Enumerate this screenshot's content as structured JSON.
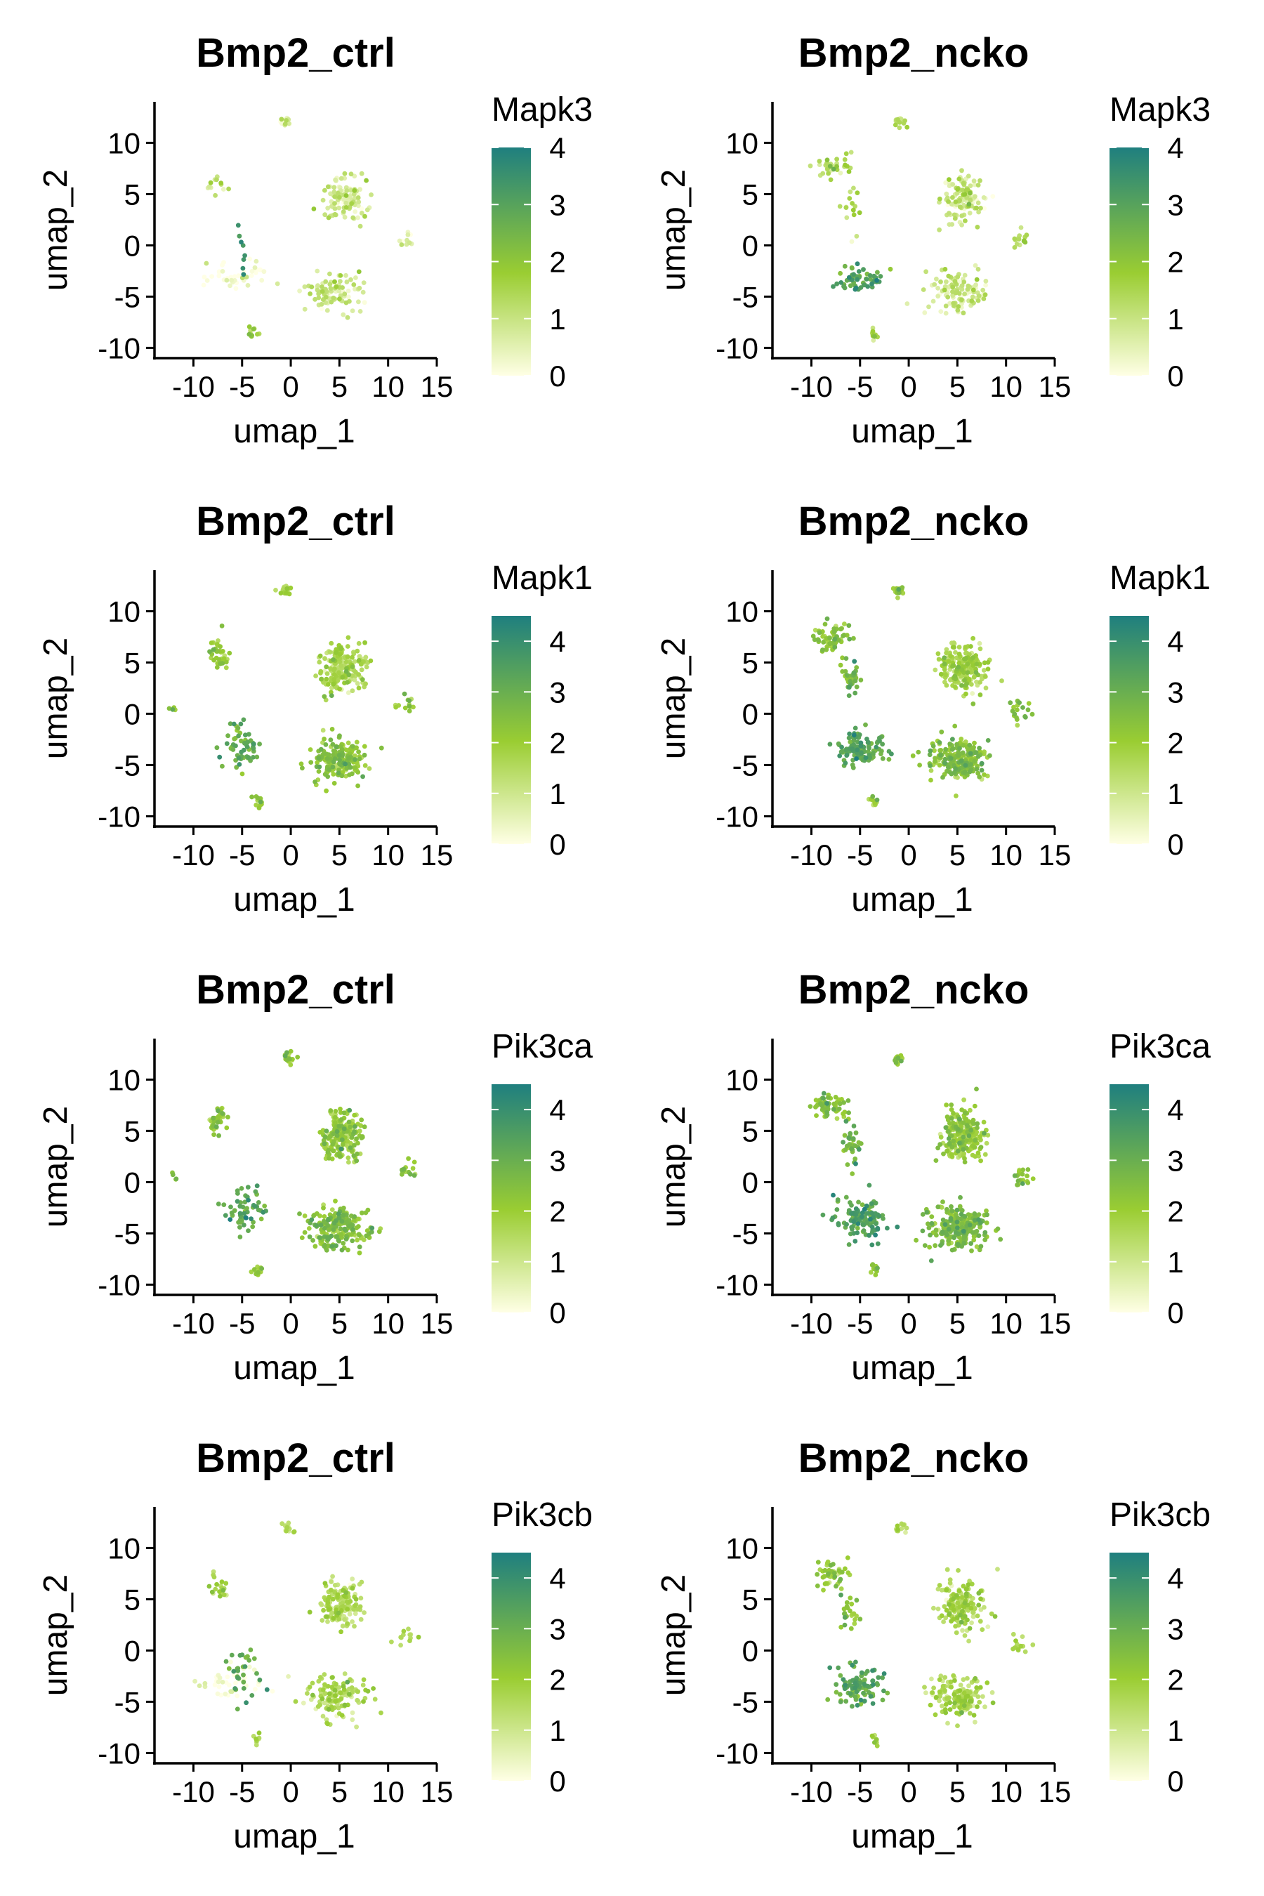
{
  "chart_data": [
    {
      "type": "scatter",
      "title": "Bmp2_ctrl",
      "xlabel": "umap_1",
      "ylabel": "umap_2",
      "gene": "Mapk3",
      "xlim": [
        -14,
        15
      ],
      "ylim": [
        -11,
        14
      ],
      "xticks": [
        -10,
        -5,
        0,
        5,
        10,
        15
      ],
      "yticks": [
        -10,
        -5,
        0,
        5,
        10
      ],
      "color_scale": {
        "min": 0,
        "max": 4,
        "ticks": [
          0,
          1,
          2,
          3,
          4
        ],
        "colors": [
          "#ffffe5",
          "#9acd32",
          "#1f7f7f"
        ]
      },
      "clusters": [
        {
          "x": -0.5,
          "y": 12,
          "sx": 0.5,
          "sy": 0.4,
          "n": 14,
          "expr": 0.9
        },
        {
          "x": 5.5,
          "y": 4.5,
          "sx": 1.9,
          "sy": 1.8,
          "n": 110,
          "expr": 0.7
        },
        {
          "x": 4.5,
          "y": -4.5,
          "sx": 2.6,
          "sy": 1.6,
          "n": 90,
          "expr": 0.9
        },
        {
          "x": -7.5,
          "y": 6,
          "sx": 0.9,
          "sy": 0.9,
          "n": 12,
          "expr": 1.2
        },
        {
          "x": -4,
          "y": -8.5,
          "sx": 0.6,
          "sy": 0.6,
          "n": 12,
          "expr": 1.6
        },
        {
          "x": -5,
          "y": -1,
          "sx": 0.6,
          "sy": 2.0,
          "n": 8,
          "expr": 3.3
        },
        {
          "x": -6,
          "y": -3,
          "sx": 3.0,
          "sy": 1.4,
          "n": 40,
          "expr": 0.05
        },
        {
          "x": 12,
          "y": 0.5,
          "sx": 0.9,
          "sy": 0.8,
          "n": 10,
          "expr": 0.7
        }
      ]
    },
    {
      "type": "scatter",
      "title": "Bmp2_ncko",
      "xlabel": "umap_1",
      "ylabel": "umap_2",
      "gene": "Mapk3",
      "xlim": [
        -14,
        15
      ],
      "ylim": [
        -11,
        14
      ],
      "xticks": [
        -10,
        -5,
        0,
        5,
        10,
        15
      ],
      "yticks": [
        -10,
        -5,
        0,
        5,
        10
      ],
      "color_scale": {
        "min": 0,
        "max": 4,
        "ticks": [
          0,
          1,
          2,
          3,
          4
        ],
        "colors": [
          "#ffffe5",
          "#9acd32",
          "#1f7f7f"
        ]
      },
      "clusters": [
        {
          "x": -1,
          "y": 12,
          "sx": 0.6,
          "sy": 0.5,
          "n": 14,
          "expr": 1.1
        },
        {
          "x": -8,
          "y": 7.5,
          "sx": 1.6,
          "sy": 1.0,
          "n": 35,
          "expr": 1.3
        },
        {
          "x": -6,
          "y": 3.5,
          "sx": 0.7,
          "sy": 1.6,
          "n": 15,
          "expr": 1.4
        },
        {
          "x": 5.5,
          "y": 4.5,
          "sx": 1.9,
          "sy": 1.8,
          "n": 120,
          "expr": 0.8
        },
        {
          "x": 5,
          "y": -4.5,
          "sx": 2.6,
          "sy": 1.6,
          "n": 110,
          "expr": 0.9
        },
        {
          "x": -5,
          "y": -3.5,
          "sx": 2.2,
          "sy": 1.4,
          "n": 55,
          "expr": 3.0
        },
        {
          "x": -3.5,
          "y": -8.5,
          "sx": 0.4,
          "sy": 0.6,
          "n": 8,
          "expr": 1.5
        },
        {
          "x": 11.5,
          "y": 0.5,
          "sx": 1.0,
          "sy": 0.9,
          "n": 14,
          "expr": 1.4
        }
      ]
    },
    {
      "type": "scatter",
      "title": "Bmp2_ctrl",
      "xlabel": "umap_1",
      "ylabel": "umap_2",
      "gene": "Mapk1",
      "xlim": [
        -14,
        15
      ],
      "ylim": [
        -11,
        14
      ],
      "xticks": [
        -10,
        -5,
        0,
        5,
        10,
        15
      ],
      "yticks": [
        -10,
        -5,
        0,
        5,
        10
      ],
      "color_scale": {
        "min": 0,
        "max": 4.5,
        "ticks": [
          0,
          1,
          2,
          3,
          4
        ],
        "colors": [
          "#ffffe5",
          "#9acd32",
          "#1f7f7f"
        ]
      },
      "clusters": [
        {
          "x": -0.3,
          "y": 12,
          "sx": 0.6,
          "sy": 0.5,
          "n": 18,
          "expr": 1.8
        },
        {
          "x": -7.5,
          "y": 6,
          "sx": 0.9,
          "sy": 1.4,
          "n": 35,
          "expr": 2.0
        },
        {
          "x": 5.2,
          "y": 4.5,
          "sx": 1.8,
          "sy": 1.9,
          "n": 190,
          "expr": 1.6
        },
        {
          "x": 5,
          "y": -4.5,
          "sx": 2.5,
          "sy": 1.7,
          "n": 190,
          "expr": 2.2
        },
        {
          "x": -5,
          "y": -3,
          "sx": 1.8,
          "sy": 1.9,
          "n": 55,
          "expr": 3.1
        },
        {
          "x": -3.5,
          "y": -8.5,
          "sx": 0.5,
          "sy": 0.6,
          "n": 12,
          "expr": 2.0
        },
        {
          "x": 12,
          "y": 1,
          "sx": 1.0,
          "sy": 0.8,
          "n": 14,
          "expr": 2.0
        },
        {
          "x": -12,
          "y": 0.5,
          "sx": 0.3,
          "sy": 0.3,
          "n": 4,
          "expr": 2.2
        }
      ]
    },
    {
      "type": "scatter",
      "title": "Bmp2_ncko",
      "xlabel": "umap_1",
      "ylabel": "umap_2",
      "gene": "Mapk1",
      "xlim": [
        -14,
        15
      ],
      "ylim": [
        -11,
        14
      ],
      "xticks": [
        -10,
        -5,
        0,
        5,
        10,
        15
      ],
      "yticks": [
        -10,
        -5,
        0,
        5,
        10
      ],
      "color_scale": {
        "min": 0,
        "max": 4.5,
        "ticks": [
          0,
          1,
          2,
          3,
          4
        ],
        "colors": [
          "#ffffe5",
          "#9acd32",
          "#1f7f7f"
        ]
      },
      "clusters": [
        {
          "x": -1,
          "y": 12,
          "sx": 0.6,
          "sy": 0.5,
          "n": 18,
          "expr": 2.0
        },
        {
          "x": -8,
          "y": 7.5,
          "sx": 1.6,
          "sy": 1.0,
          "n": 60,
          "expr": 2.3
        },
        {
          "x": -6,
          "y": 3.5,
          "sx": 0.8,
          "sy": 1.7,
          "n": 35,
          "expr": 2.6
        },
        {
          "x": 5.5,
          "y": 4.5,
          "sx": 1.9,
          "sy": 1.9,
          "n": 210,
          "expr": 1.7
        },
        {
          "x": 5,
          "y": -4.5,
          "sx": 2.6,
          "sy": 1.7,
          "n": 210,
          "expr": 2.4
        },
        {
          "x": -5,
          "y": -3.5,
          "sx": 2.3,
          "sy": 1.6,
          "n": 110,
          "expr": 3.2
        },
        {
          "x": -3.5,
          "y": -8.5,
          "sx": 0.4,
          "sy": 0.6,
          "n": 10,
          "expr": 2.0
        },
        {
          "x": 11.5,
          "y": 0.5,
          "sx": 1.0,
          "sy": 0.9,
          "n": 18,
          "expr": 2.4
        }
      ]
    },
    {
      "type": "scatter",
      "title": "Bmp2_ctrl",
      "xlabel": "umap_1",
      "ylabel": "umap_2",
      "gene": "Pik3ca",
      "xlim": [
        -14,
        15
      ],
      "ylim": [
        -11,
        14
      ],
      "xticks": [
        -10,
        -5,
        0,
        5,
        10,
        15
      ],
      "yticks": [
        -10,
        -5,
        0,
        5,
        10
      ],
      "color_scale": {
        "min": 0,
        "max": 4.5,
        "ticks": [
          0,
          1,
          2,
          3,
          4
        ],
        "colors": [
          "#ffffe5",
          "#9acd32",
          "#1f7f7f"
        ]
      },
      "clusters": [
        {
          "x": -0.3,
          "y": 12,
          "sx": 0.6,
          "sy": 0.5,
          "n": 18,
          "expr": 2.0
        },
        {
          "x": -7.5,
          "y": 6,
          "sx": 0.9,
          "sy": 1.4,
          "n": 35,
          "expr": 2.2
        },
        {
          "x": 5.2,
          "y": 4.5,
          "sx": 1.8,
          "sy": 1.9,
          "n": 190,
          "expr": 2.0
        },
        {
          "x": 5,
          "y": -4.5,
          "sx": 2.5,
          "sy": 1.7,
          "n": 200,
          "expr": 2.3
        },
        {
          "x": -5,
          "y": -3,
          "sx": 1.8,
          "sy": 1.9,
          "n": 55,
          "expr": 3.2
        },
        {
          "x": -3.5,
          "y": -8.5,
          "sx": 0.5,
          "sy": 0.6,
          "n": 12,
          "expr": 2.0
        },
        {
          "x": 12,
          "y": 1,
          "sx": 1.0,
          "sy": 0.8,
          "n": 14,
          "expr": 2.2
        },
        {
          "x": -12,
          "y": 0.5,
          "sx": 0.3,
          "sy": 0.3,
          "n": 4,
          "expr": 2.4
        }
      ]
    },
    {
      "type": "scatter",
      "title": "Bmp2_ncko",
      "xlabel": "umap_1",
      "ylabel": "umap_2",
      "gene": "Pik3ca",
      "xlim": [
        -14,
        15
      ],
      "ylim": [
        -11,
        14
      ],
      "xticks": [
        -10,
        -5,
        0,
        5,
        10,
        15
      ],
      "yticks": [
        -10,
        -5,
        0,
        5,
        10
      ],
      "color_scale": {
        "min": 0,
        "max": 4.5,
        "ticks": [
          0,
          1,
          2,
          3,
          4
        ],
        "colors": [
          "#ffffe5",
          "#9acd32",
          "#1f7f7f"
        ]
      },
      "clusters": [
        {
          "x": -1,
          "y": 12,
          "sx": 0.6,
          "sy": 0.5,
          "n": 18,
          "expr": 2.0
        },
        {
          "x": -8,
          "y": 7.5,
          "sx": 1.6,
          "sy": 1.0,
          "n": 60,
          "expr": 2.4
        },
        {
          "x": -6,
          "y": 3.5,
          "sx": 0.8,
          "sy": 1.7,
          "n": 35,
          "expr": 2.7
        },
        {
          "x": 5.5,
          "y": 4.5,
          "sx": 1.9,
          "sy": 1.9,
          "n": 220,
          "expr": 2.0
        },
        {
          "x": 5,
          "y": -4.5,
          "sx": 2.6,
          "sy": 1.7,
          "n": 220,
          "expr": 2.5
        },
        {
          "x": -5,
          "y": -3.5,
          "sx": 2.3,
          "sy": 1.6,
          "n": 120,
          "expr": 3.3
        },
        {
          "x": -3.5,
          "y": -8.5,
          "sx": 0.4,
          "sy": 0.6,
          "n": 10,
          "expr": 2.2
        },
        {
          "x": 11.5,
          "y": 0.5,
          "sx": 1.0,
          "sy": 0.9,
          "n": 18,
          "expr": 2.4
        }
      ]
    },
    {
      "type": "scatter",
      "title": "Bmp2_ctrl",
      "xlabel": "umap_1",
      "ylabel": "umap_2",
      "gene": "Pik3cb",
      "xlim": [
        -14,
        15
      ],
      "ylim": [
        -11,
        14
      ],
      "xticks": [
        -10,
        -5,
        0,
        5,
        10,
        15
      ],
      "yticks": [
        -10,
        -5,
        0,
        5,
        10
      ],
      "color_scale": {
        "min": 0,
        "max": 4.5,
        "ticks": [
          0,
          1,
          2,
          3,
          4
        ],
        "colors": [
          "#ffffe5",
          "#9acd32",
          "#1f7f7f"
        ]
      },
      "clusters": [
        {
          "x": -0.3,
          "y": 12,
          "sx": 0.6,
          "sy": 0.5,
          "n": 14,
          "expr": 1.4
        },
        {
          "x": -7.5,
          "y": 6,
          "sx": 0.9,
          "sy": 1.2,
          "n": 20,
          "expr": 1.6
        },
        {
          "x": 5.2,
          "y": 4.5,
          "sx": 1.8,
          "sy": 1.9,
          "n": 160,
          "expr": 1.4
        },
        {
          "x": 4.5,
          "y": -4.5,
          "sx": 2.5,
          "sy": 1.6,
          "n": 130,
          "expr": 1.5
        },
        {
          "x": -5,
          "y": -2.5,
          "sx": 1.8,
          "sy": 2.0,
          "n": 30,
          "expr": 3.0
        },
        {
          "x": -3.5,
          "y": -8.5,
          "sx": 0.5,
          "sy": 0.6,
          "n": 8,
          "expr": 1.7
        },
        {
          "x": 12,
          "y": 1,
          "sx": 1.0,
          "sy": 0.8,
          "n": 12,
          "expr": 1.5
        },
        {
          "x": -6,
          "y": -3,
          "sx": 3.0,
          "sy": 1.4,
          "n": 40,
          "expr": 0.05
        }
      ]
    },
    {
      "type": "scatter",
      "title": "Bmp2_ncko",
      "xlabel": "umap_1",
      "ylabel": "umap_2",
      "gene": "Pik3cb",
      "xlim": [
        -14,
        15
      ],
      "ylim": [
        -11,
        14
      ],
      "xticks": [
        -10,
        -5,
        0,
        5,
        10,
        15
      ],
      "yticks": [
        -10,
        -5,
        0,
        5,
        10
      ],
      "color_scale": {
        "min": 0,
        "max": 4.5,
        "ticks": [
          0,
          1,
          2,
          3,
          4
        ],
        "colors": [
          "#ffffe5",
          "#9acd32",
          "#1f7f7f"
        ]
      },
      "clusters": [
        {
          "x": -1,
          "y": 12,
          "sx": 0.6,
          "sy": 0.5,
          "n": 14,
          "expr": 1.4
        },
        {
          "x": -8,
          "y": 7.5,
          "sx": 1.6,
          "sy": 1.0,
          "n": 50,
          "expr": 2.0
        },
        {
          "x": -6,
          "y": 3.5,
          "sx": 0.8,
          "sy": 1.7,
          "n": 25,
          "expr": 2.2
        },
        {
          "x": 5.5,
          "y": 4.5,
          "sx": 1.9,
          "sy": 1.9,
          "n": 160,
          "expr": 1.6
        },
        {
          "x": 5,
          "y": -4.5,
          "sx": 2.6,
          "sy": 1.7,
          "n": 140,
          "expr": 1.6
        },
        {
          "x": -5,
          "y": -3.5,
          "sx": 2.3,
          "sy": 1.6,
          "n": 90,
          "expr": 3.2
        },
        {
          "x": -3.5,
          "y": -8.5,
          "sx": 0.4,
          "sy": 0.6,
          "n": 8,
          "expr": 1.8
        },
        {
          "x": 11.5,
          "y": 0.5,
          "sx": 1.0,
          "sy": 0.9,
          "n": 14,
          "expr": 1.7
        }
      ]
    }
  ]
}
